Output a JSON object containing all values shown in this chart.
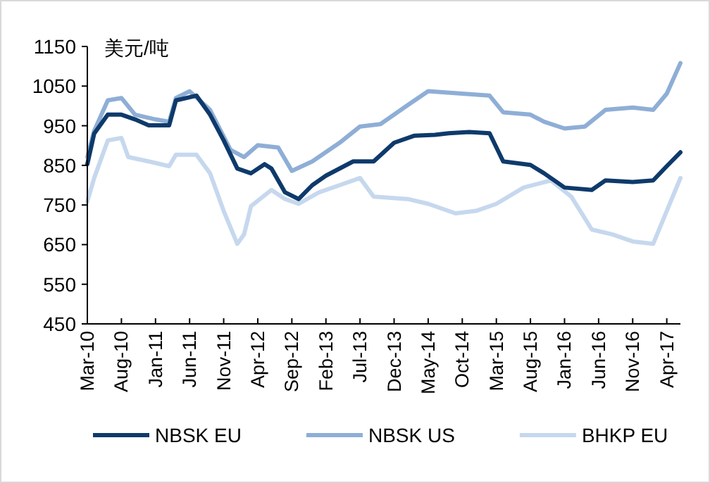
{
  "chart_data": {
    "type": "line",
    "ylabel": "美元/吨",
    "xlim": [
      "2010-03",
      "2017-06"
    ],
    "ylim": [
      450,
      1150
    ],
    "yticks": [
      450,
      550,
      650,
      750,
      850,
      950,
      1050,
      1150
    ],
    "xticks": [
      {
        "value": "2010-03",
        "label": "Mar-10"
      },
      {
        "value": "2010-08",
        "label": "Aug-10"
      },
      {
        "value": "2011-01",
        "label": "Jan-11"
      },
      {
        "value": "2011-06",
        "label": "Jun-11"
      },
      {
        "value": "2011-11",
        "label": "Nov-11"
      },
      {
        "value": "2012-04",
        "label": "Apr-12"
      },
      {
        "value": "2012-09",
        "label": "Sep-12"
      },
      {
        "value": "2013-02",
        "label": "Feb-13"
      },
      {
        "value": "2013-07",
        "label": "Jul-13"
      },
      {
        "value": "2013-12",
        "label": "Dec-13"
      },
      {
        "value": "2014-05",
        "label": "May-14"
      },
      {
        "value": "2014-10",
        "label": "Oct-14"
      },
      {
        "value": "2015-03",
        "label": "Mar-15"
      },
      {
        "value": "2015-08",
        "label": "Aug-15"
      },
      {
        "value": "2016-01",
        "label": "Jan-16"
      },
      {
        "value": "2016-06",
        "label": "Jun-16"
      },
      {
        "value": "2016-11",
        "label": "Nov-16"
      },
      {
        "value": "2017-04",
        "label": "Apr-17"
      }
    ],
    "grid": false,
    "legend": "bottom",
    "marker": "none",
    "line_style": "solid",
    "series": [
      {
        "name": "NBSK EU",
        "color": "#0e3a6b",
        "x": [
          "2010-03",
          "2010-04",
          "2010-06",
          "2010-08",
          "2010-10",
          "2010-12",
          "2011-03",
          "2011-04",
          "2011-07",
          "2011-09",
          "2011-11",
          "2012-01",
          "2012-03",
          "2012-05",
          "2012-06",
          "2012-08",
          "2012-10",
          "2012-12",
          "2013-02",
          "2013-06",
          "2013-09",
          "2013-12",
          "2014-03",
          "2014-06",
          "2014-08",
          "2014-11",
          "2015-02",
          "2015-04",
          "2015-08",
          "2015-10",
          "2016-01",
          "2016-05",
          "2016-07",
          "2016-11",
          "2017-02",
          "2017-04",
          "2017-06"
        ],
        "values": [
          853,
          930,
          978,
          978,
          966,
          951,
          951,
          1014,
          1026,
          978,
          913,
          842,
          830,
          853,
          842,
          782,
          765,
          800,
          824,
          860,
          860,
          907,
          925,
          927,
          931,
          934,
          931,
          860,
          851,
          830,
          794,
          788,
          812,
          808,
          812,
          848,
          883
        ]
      },
      {
        "name": "NBSK US",
        "color": "#8eaed6",
        "x": [
          "2010-03",
          "2010-04",
          "2010-06",
          "2010-08",
          "2010-10",
          "2011-01",
          "2011-03",
          "2011-04",
          "2011-06",
          "2011-09",
          "2011-12",
          "2012-02",
          "2012-04",
          "2012-07",
          "2012-09",
          "2012-12",
          "2013-04",
          "2013-07",
          "2013-10",
          "2014-02",
          "2014-05",
          "2014-10",
          "2015-02",
          "2015-04",
          "2015-08",
          "2015-10",
          "2016-01",
          "2016-04",
          "2016-07",
          "2016-11",
          "2017-02",
          "2017-04",
          "2017-06"
        ],
        "values": [
          871,
          937,
          1014,
          1020,
          978,
          966,
          960,
          1020,
          1037,
          990,
          889,
          871,
          901,
          895,
          836,
          860,
          907,
          948,
          954,
          1002,
          1037,
          1031,
          1026,
          984,
          978,
          960,
          943,
          948,
          990,
          996,
          990,
          1031,
          1108
        ]
      },
      {
        "name": "BHKP EU",
        "color": "#c6d8ee",
        "x": [
          "2010-03",
          "2010-04",
          "2010-06",
          "2010-08",
          "2010-09",
          "2010-12",
          "2011-03",
          "2011-04",
          "2011-07",
          "2011-09",
          "2011-11",
          "2012-01",
          "2012-02",
          "2012-03",
          "2012-06",
          "2012-08",
          "2012-10",
          "2013-01",
          "2013-04",
          "2013-07",
          "2013-09",
          "2014-02",
          "2014-05",
          "2014-09",
          "2014-12",
          "2015-03",
          "2015-07",
          "2015-11",
          "2016-02",
          "2016-05",
          "2016-08",
          "2016-11",
          "2017-02",
          "2017-04",
          "2017-06"
        ],
        "values": [
          759,
          818,
          913,
          919,
          871,
          860,
          848,
          877,
          877,
          830,
          735,
          652,
          676,
          747,
          788,
          765,
          753,
          782,
          800,
          818,
          771,
          765,
          753,
          729,
          735,
          753,
          794,
          812,
          771,
          688,
          676,
          658,
          652,
          735,
          818
        ]
      }
    ]
  }
}
